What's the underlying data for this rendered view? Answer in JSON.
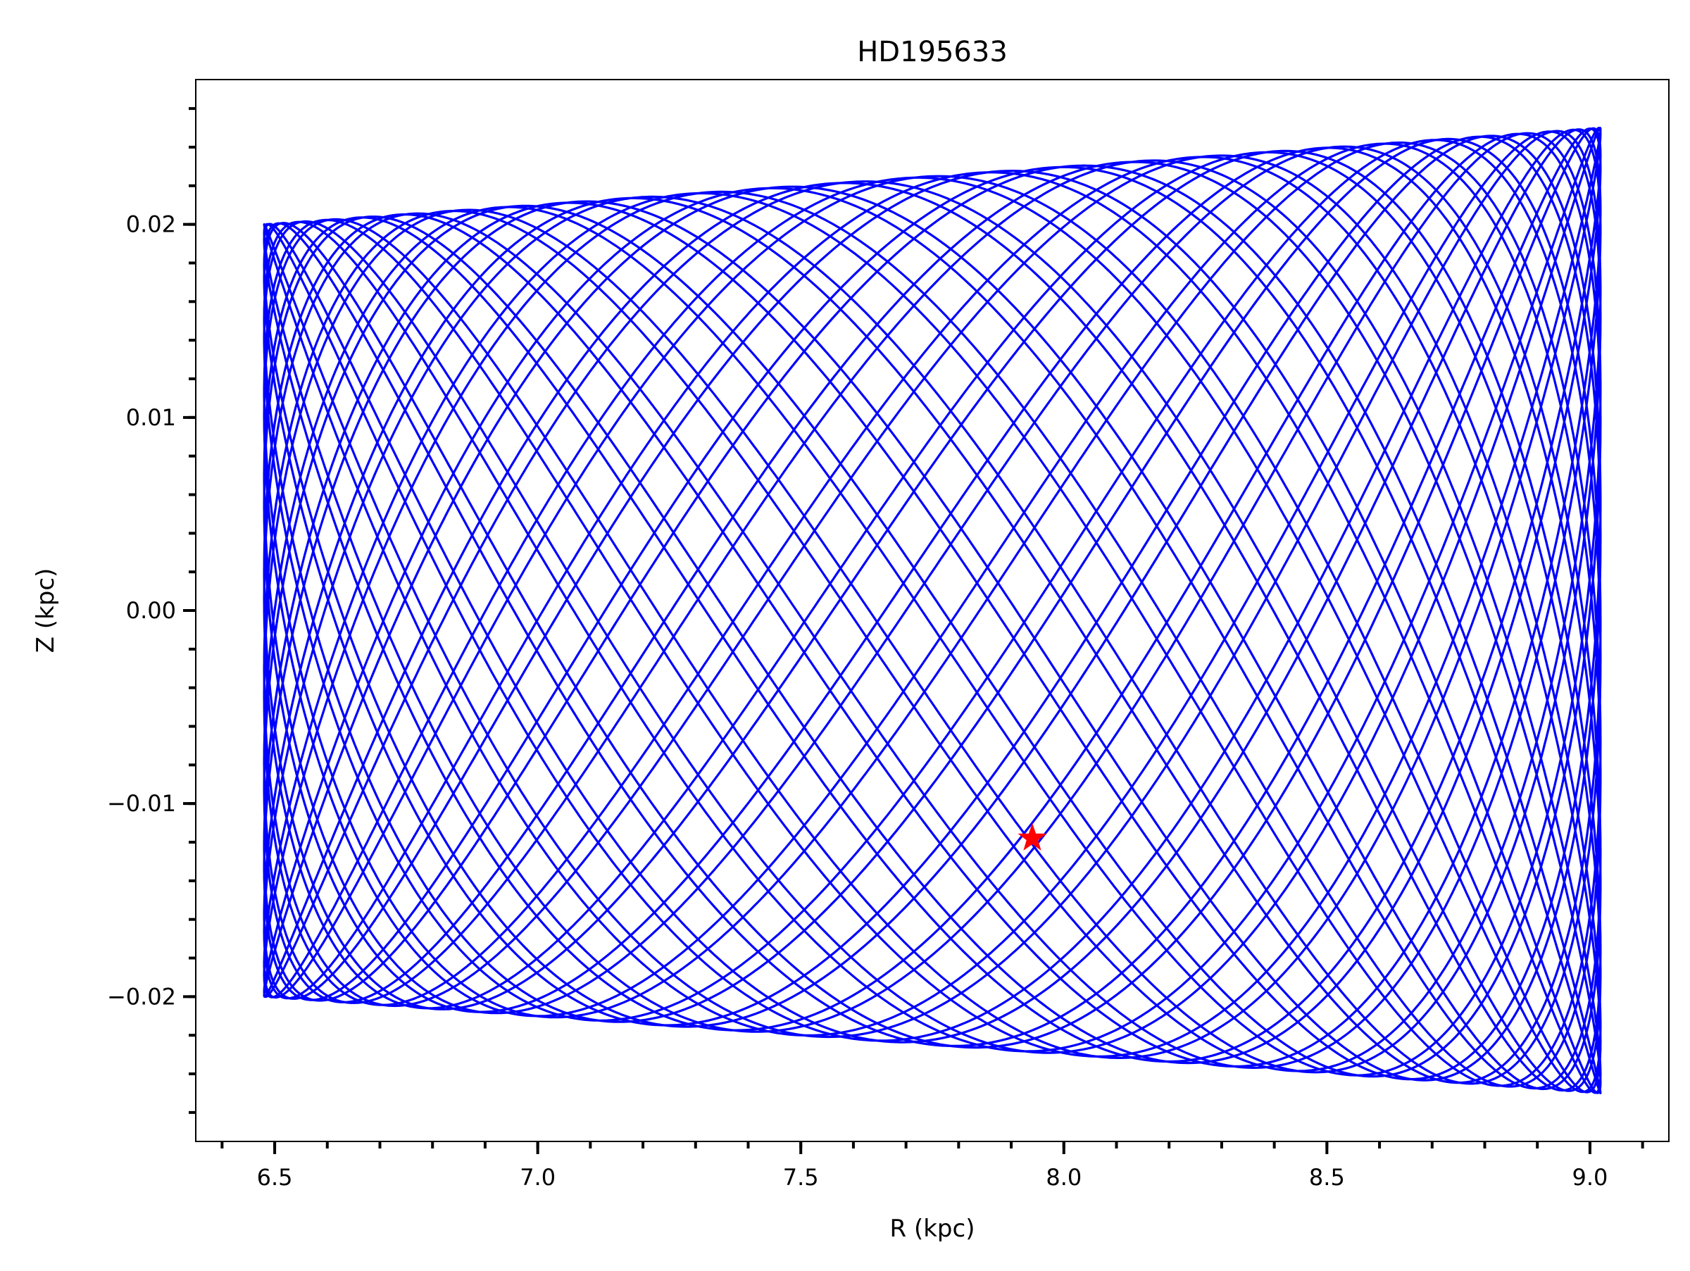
{
  "chart_data": {
    "type": "line",
    "title": "HD195633",
    "xlabel": "R (kpc)",
    "ylabel": "Z (kpc)",
    "xlim": [
      6.35,
      9.15
    ],
    "ylim": [
      -0.0275,
      0.0275
    ],
    "x_ticks": [
      6.5,
      7.0,
      7.5,
      8.0,
      8.5,
      9.0
    ],
    "x_tick_labels": [
      "6.5",
      "7.0",
      "7.5",
      "8.0",
      "8.5",
      "9.0"
    ],
    "x_minor_step": 0.1,
    "y_ticks": [
      -0.02,
      -0.01,
      0.0,
      0.01,
      0.02
    ],
    "y_tick_labels": [
      "−0.02",
      "−0.01",
      "0.00",
      "0.01",
      "0.02"
    ],
    "y_minor_step": 0.002,
    "grid": false,
    "legend": "none",
    "series": [
      {
        "kind": "orbit",
        "color": "#0000ff",
        "r_min": 6.48,
        "r_max": 9.02,
        "z_amp_at_r_min": 0.02,
        "z_amp_at_r_max": 0.025
      }
    ],
    "marker": {
      "shape": "star",
      "color": "#ff0000",
      "x": 7.94,
      "y": -0.0118
    }
  }
}
